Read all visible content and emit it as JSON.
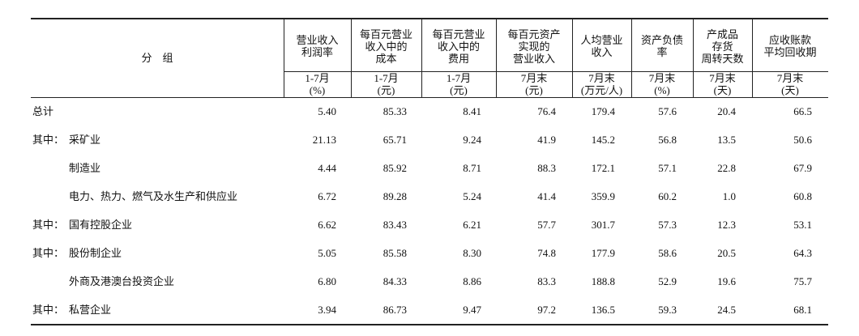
{
  "table": {
    "group_header": "分　组",
    "columns": [
      {
        "title": [
          "营业收入",
          "利润率"
        ],
        "unit": [
          "1-7月",
          "(%)"
        ]
      },
      {
        "title": [
          "每百元营业",
          "收入中的",
          "成本"
        ],
        "unit": [
          "1-7月",
          "(元)"
        ]
      },
      {
        "title": [
          "每百元营业",
          "收入中的",
          "费用"
        ],
        "unit": [
          "1-7月",
          "(元)"
        ]
      },
      {
        "title": [
          "每百元资产",
          "实现的",
          "营业收入"
        ],
        "unit": [
          "7月末",
          "(元)"
        ]
      },
      {
        "title": [
          "人均营业",
          "收入"
        ],
        "unit": [
          "7月末",
          "(万元/人)"
        ]
      },
      {
        "title": [
          "资产负债",
          "率"
        ],
        "unit": [
          "7月末",
          "(%)"
        ]
      },
      {
        "title": [
          "产成品",
          "存货",
          "周转天数"
        ],
        "unit": [
          "7月末",
          "(天)"
        ]
      },
      {
        "title": [
          "应收账款",
          "平均回收期"
        ],
        "unit": [
          "7月末",
          "(天)"
        ]
      }
    ],
    "rows": [
      {
        "prefix": "总计",
        "label": "",
        "values": [
          "5.40",
          "85.33",
          "8.41",
          "76.4",
          "179.4",
          "57.6",
          "20.4",
          "66.5"
        ]
      },
      {
        "prefix": "其中：",
        "label": "采矿业",
        "values": [
          "21.13",
          "65.71",
          "9.24",
          "41.9",
          "145.2",
          "56.8",
          "13.5",
          "50.6"
        ]
      },
      {
        "prefix": "",
        "label": "制造业",
        "values": [
          "4.44",
          "85.92",
          "8.71",
          "88.3",
          "172.1",
          "57.1",
          "22.8",
          "67.9"
        ]
      },
      {
        "prefix": "",
        "label": "电力、热力、燃气及水生产和供应业",
        "values": [
          "6.72",
          "89.28",
          "5.24",
          "41.4",
          "359.9",
          "60.2",
          "1.0",
          "60.8"
        ]
      },
      {
        "prefix": "其中：",
        "label": "国有控股企业",
        "values": [
          "6.62",
          "83.43",
          "6.21",
          "57.7",
          "301.7",
          "57.3",
          "12.3",
          "53.1"
        ]
      },
      {
        "prefix": "其中：",
        "label": "股份制企业",
        "values": [
          "5.05",
          "85.58",
          "8.30",
          "74.8",
          "177.9",
          "58.6",
          "20.5",
          "64.3"
        ]
      },
      {
        "prefix": "",
        "label": "外商及港澳台投资企业",
        "values": [
          "6.80",
          "84.33",
          "8.86",
          "83.3",
          "188.8",
          "52.9",
          "19.6",
          "75.7"
        ]
      },
      {
        "prefix": "其中：",
        "label": "私营企业",
        "values": [
          "3.94",
          "86.73",
          "9.47",
          "97.2",
          "136.5",
          "59.3",
          "24.5",
          "68.1"
        ]
      }
    ]
  }
}
